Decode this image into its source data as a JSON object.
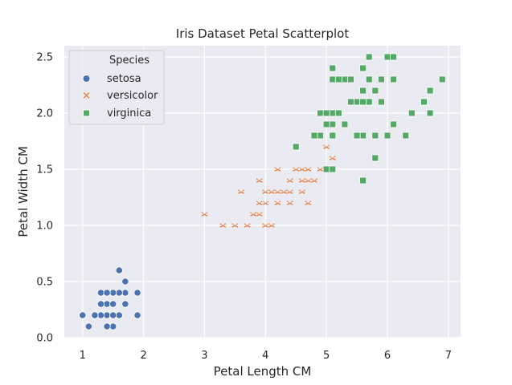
{
  "chart_data": {
    "type": "scatter",
    "title": "Iris Dataset Petal Scatterplot",
    "xlabel": "Petal Length CM",
    "ylabel": "Petal Width CM",
    "xlim": [
      0.7,
      7.2
    ],
    "ylim": [
      0.0,
      2.6
    ],
    "xticks": [
      "1",
      "2",
      "3",
      "4",
      "5",
      "6",
      "7"
    ],
    "yticks": [
      "0.0",
      "0.5",
      "1.0",
      "1.5",
      "2.0",
      "2.5"
    ],
    "grid": true,
    "legend": {
      "title": "Species",
      "placement": "upper-left"
    },
    "series": [
      {
        "name": "setosa",
        "marker": "circle",
        "color": "#4c72b0",
        "points": [
          [
            1.4,
            0.2
          ],
          [
            1.3,
            0.2
          ],
          [
            1.5,
            0.2
          ],
          [
            1.7,
            0.4
          ],
          [
            1.4,
            0.3
          ],
          [
            1.5,
            0.1
          ],
          [
            1.6,
            0.2
          ],
          [
            1.1,
            0.1
          ],
          [
            1.2,
            0.2
          ],
          [
            1.3,
            0.4
          ],
          [
            1.0,
            0.2
          ],
          [
            1.7,
            0.5
          ],
          [
            1.9,
            0.2
          ],
          [
            1.6,
            0.4
          ],
          [
            1.4,
            0.1
          ],
          [
            1.5,
            0.4
          ],
          [
            1.3,
            0.3
          ],
          [
            1.7,
            0.3
          ],
          [
            1.5,
            0.3
          ],
          [
            1.6,
            0.6
          ],
          [
            1.9,
            0.4
          ],
          [
            1.4,
            0.4
          ],
          [
            1.5,
            0.2
          ],
          [
            1.2,
            0.2
          ]
        ]
      },
      {
        "name": "versicolor",
        "marker": "x",
        "color": "#dd8452",
        "points": [
          [
            4.7,
            1.4
          ],
          [
            4.5,
            1.5
          ],
          [
            4.9,
            1.5
          ],
          [
            4.0,
            1.3
          ],
          [
            4.6,
            1.5
          ],
          [
            3.3,
            1.0
          ],
          [
            4.6,
            1.3
          ],
          [
            3.9,
            1.4
          ],
          [
            3.5,
            1.0
          ],
          [
            4.2,
            1.5
          ],
          [
            4.0,
            1.0
          ],
          [
            4.7,
            1.4
          ],
          [
            3.6,
            1.3
          ],
          [
            4.4,
            1.4
          ],
          [
            4.5,
            1.5
          ],
          [
            4.1,
            1.0
          ],
          [
            3.9,
            1.1
          ],
          [
            4.8,
            1.8
          ],
          [
            4.0,
            1.3
          ],
          [
            4.9,
            1.5
          ],
          [
            4.7,
            1.2
          ],
          [
            4.3,
            1.3
          ],
          [
            4.4,
            1.4
          ],
          [
            5.0,
            1.7
          ],
          [
            4.5,
            1.5
          ],
          [
            3.5,
            1.0
          ],
          [
            3.8,
            1.1
          ],
          [
            3.7,
            1.0
          ],
          [
            3.9,
            1.2
          ],
          [
            5.1,
            1.6
          ],
          [
            4.5,
            1.5
          ],
          [
            4.7,
            1.5
          ],
          [
            4.4,
            1.3
          ],
          [
            4.1,
            1.3
          ],
          [
            4.0,
            1.3
          ],
          [
            4.4,
            1.2
          ],
          [
            4.6,
            1.4
          ],
          [
            4.0,
            1.2
          ],
          [
            3.0,
            1.1
          ],
          [
            4.2,
            1.3
          ],
          [
            4.2,
            1.2
          ],
          [
            4.3,
            1.3
          ],
          [
            4.1,
            1.3
          ],
          [
            3.9,
            1.2
          ],
          [
            4.8,
            1.4
          ]
        ]
      },
      {
        "name": "virginica",
        "marker": "square",
        "color": "#55a868",
        "points": [
          [
            6.0,
            2.5
          ],
          [
            5.1,
            1.9
          ],
          [
            5.9,
            2.1
          ],
          [
            5.6,
            1.8
          ],
          [
            5.8,
            2.2
          ],
          [
            6.6,
            2.1
          ],
          [
            4.5,
            1.7
          ],
          [
            6.3,
            1.8
          ],
          [
            5.8,
            1.8
          ],
          [
            6.1,
            2.5
          ],
          [
            5.1,
            2.0
          ],
          [
            5.3,
            1.9
          ],
          [
            5.5,
            2.1
          ],
          [
            5.0,
            2.0
          ],
          [
            5.1,
            2.4
          ],
          [
            5.3,
            2.3
          ],
          [
            5.5,
            1.8
          ],
          [
            6.7,
            2.2
          ],
          [
            6.9,
            2.3
          ],
          [
            5.0,
            1.5
          ],
          [
            5.7,
            2.3
          ],
          [
            4.9,
            2.0
          ],
          [
            6.7,
            2.0
          ],
          [
            4.9,
            1.8
          ],
          [
            5.7,
            2.1
          ],
          [
            6.0,
            1.8
          ],
          [
            4.8,
            1.8
          ],
          [
            5.6,
            2.1
          ],
          [
            5.8,
            1.6
          ],
          [
            6.1,
            1.9
          ],
          [
            6.4,
            2.0
          ],
          [
            5.6,
            2.2
          ],
          [
            5.1,
            1.5
          ],
          [
            5.6,
            1.4
          ],
          [
            6.1,
            2.3
          ],
          [
            5.6,
            2.4
          ],
          [
            5.5,
            1.8
          ],
          [
            5.4,
            2.1
          ],
          [
            5.6,
            2.4
          ],
          [
            5.1,
            2.3
          ],
          [
            5.9,
            2.3
          ],
          [
            5.7,
            2.5
          ],
          [
            5.2,
            2.3
          ],
          [
            5.0,
            1.9
          ],
          [
            5.2,
            2.0
          ],
          [
            5.4,
            2.3
          ],
          [
            5.6,
            2.1
          ],
          [
            5.0,
            2.0
          ],
          [
            6.3,
            1.8
          ],
          [
            6.6,
            2.1
          ],
          [
            5.1,
            1.8
          ]
        ]
      }
    ]
  }
}
